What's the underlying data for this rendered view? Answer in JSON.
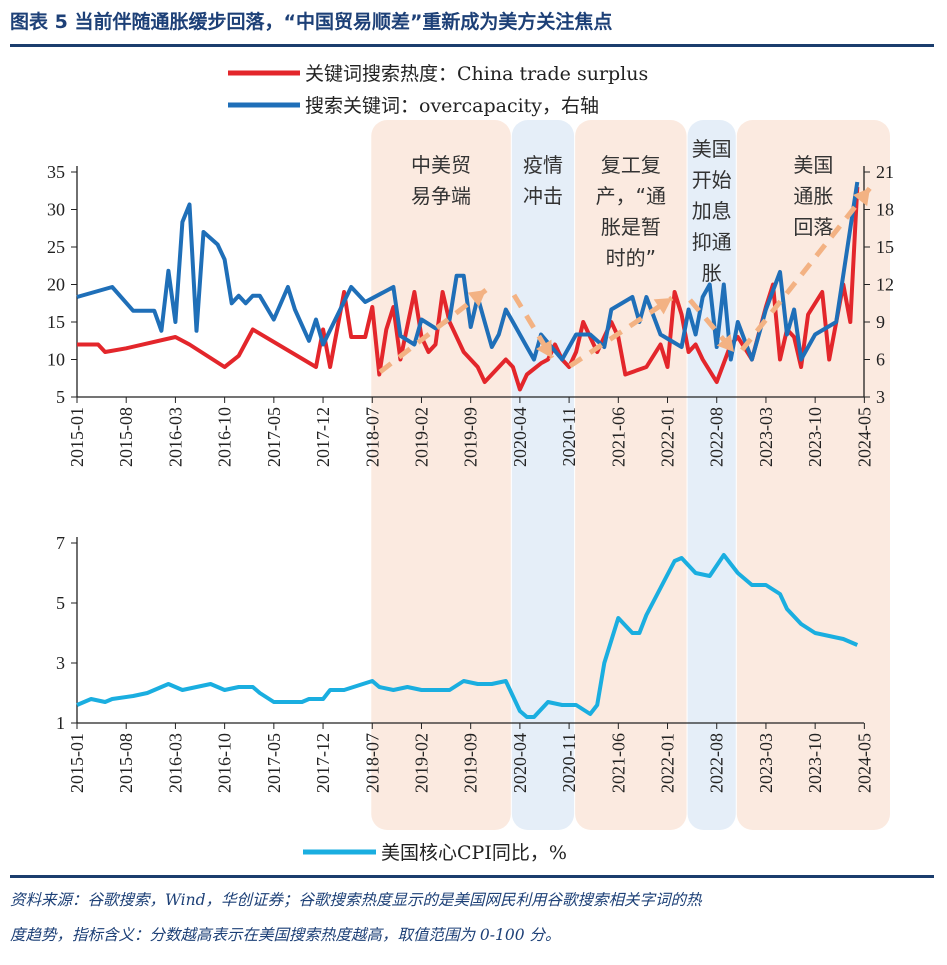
{
  "header": {
    "title": "图表 5   当前伴随通胀缓步回落，“中国贸易顺差”重新成为美方关注焦点"
  },
  "colors": {
    "red": "#e3262b",
    "blue": "#1f6fb8",
    "cyan": "#1aaee0",
    "peach_band": "#fbeae0",
    "blue_band": "#e5eef8",
    "arrow": "#f3b283",
    "rule": "#1b3d6d"
  },
  "legend": {
    "red": "关键词搜索热度：China trade surplus",
    "blue": "搜索关键词：overcapacity，右轴",
    "cyan": "美国核心CPI同比，%"
  },
  "bands": [
    {
      "start": "2018-07",
      "end": "2020-02",
      "type": "peach",
      "lines": [
        "中美贸",
        "易争端"
      ]
    },
    {
      "start": "2020-03",
      "end": "2020-11",
      "type": "blue",
      "lines": [
        "疫情",
        "冲击"
      ]
    },
    {
      "start": "2020-12",
      "end": "2022-03",
      "type": "peach",
      "lines": [
        "复工复",
        "产，“通",
        "胀是暂",
        "时的”"
      ]
    },
    {
      "start": "2022-04",
      "end": "2022-10",
      "type": "blue",
      "lines": [
        "美国",
        "开始",
        "加息",
        "抑通",
        "胀"
      ]
    },
    {
      "start": "2022-11",
      "end": "2024-05",
      "type": "peach",
      "lines": [
        "美国",
        "通胀",
        "回落"
      ]
    }
  ],
  "chart_data": [
    {
      "type": "line",
      "title": "",
      "x_ticks": [
        "2015-01",
        "2015-08",
        "2016-03",
        "2016-10",
        "2017-05",
        "2017-12",
        "2018-07",
        "2019-02",
        "2019-09",
        "2020-04",
        "2020-11",
        "2021-06",
        "2022-01",
        "2022-08",
        "2023-03",
        "2023-10",
        "2024-05"
      ],
      "y_left": {
        "min": 5,
        "max": 35,
        "ticks": [
          "5",
          "10",
          "15",
          "20",
          "25",
          "30",
          "35"
        ]
      },
      "y_right": {
        "min": 3,
        "max": 21,
        "ticks": [
          "3",
          "6",
          "9",
          "12",
          "15",
          "18",
          "21"
        ]
      },
      "series": [
        {
          "name": "关键词搜索热度：China trade surplus",
          "axis": "left",
          "color": "#e3262b",
          "points": [
            [
              "2015-01",
              12
            ],
            [
              "2015-04",
              12
            ],
            [
              "2015-05",
              11
            ],
            [
              "2015-08",
              11.5
            ],
            [
              "2016-03",
              13
            ],
            [
              "2016-05",
              12
            ],
            [
              "2016-10",
              9
            ],
            [
              "2016-12",
              10.5
            ],
            [
              "2017-02",
              14
            ],
            [
              "2017-11",
              9
            ],
            [
              "2017-12",
              14
            ],
            [
              "2018-01",
              9
            ],
            [
              "2018-03",
              19
            ],
            [
              "2018-04",
              13
            ],
            [
              "2018-06",
              13
            ],
            [
              "2018-07",
              17
            ],
            [
              "2018-08",
              8
            ],
            [
              "2018-09",
              14
            ],
            [
              "2018-10",
              17
            ],
            [
              "2018-11",
              10
            ],
            [
              "2019-01",
              19
            ],
            [
              "2019-02",
              13
            ],
            [
              "2019-03",
              11
            ],
            [
              "2019-04",
              12
            ],
            [
              "2019-05",
              19
            ],
            [
              "2019-06",
              15
            ],
            [
              "2019-08",
              11
            ],
            [
              "2019-10",
              9
            ],
            [
              "2019-11",
              7
            ],
            [
              "2020-01",
              9
            ],
            [
              "2020-02",
              10
            ],
            [
              "2020-03",
              9
            ],
            [
              "2020-04",
              6
            ],
            [
              "2020-05",
              8
            ],
            [
              "2020-07",
              9.5
            ],
            [
              "2020-08",
              10
            ],
            [
              "2020-09",
              12
            ],
            [
              "2020-10",
              10
            ],
            [
              "2020-11",
              9
            ],
            [
              "2020-12",
              11
            ],
            [
              "2021-01",
              15
            ],
            [
              "2021-03",
              11
            ],
            [
              "2021-05",
              15
            ],
            [
              "2021-06",
              13
            ],
            [
              "2021-07",
              8
            ],
            [
              "2021-10",
              9
            ],
            [
              "2021-12",
              12
            ],
            [
              "2022-01",
              9
            ],
            [
              "2022-02",
              19
            ],
            [
              "2022-03",
              16
            ],
            [
              "2022-04",
              11
            ],
            [
              "2022-05",
              12
            ],
            [
              "2022-06",
              10
            ],
            [
              "2022-08",
              7
            ],
            [
              "2022-10",
              12
            ],
            [
              "2022-11",
              13
            ],
            [
              "2023-01",
              10
            ],
            [
              "2023-03",
              17
            ],
            [
              "2023-04",
              20
            ],
            [
              "2023-05",
              10
            ],
            [
              "2023-06",
              14
            ],
            [
              "2023-07",
              13
            ],
            [
              "2023-08",
              9
            ],
            [
              "2023-09",
              16
            ],
            [
              "2023-11",
              19
            ],
            [
              "2023-12",
              10
            ],
            [
              "2024-02",
              20
            ],
            [
              "2024-03",
              15
            ],
            [
              "2024-04",
              33
            ]
          ]
        },
        {
          "name": "搜索关键词：overcapacity，右轴",
          "axis": "right",
          "color": "#1f6fb8",
          "points": [
            [
              "2015-01",
              11
            ],
            [
              "2015-06",
              11.8
            ],
            [
              "2015-09",
              9.9
            ],
            [
              "2015-12",
              9.9
            ],
            [
              "2016-01",
              8.3
            ],
            [
              "2016-02",
              13.1
            ],
            [
              "2016-03",
              9
            ],
            [
              "2016-04",
              17
            ],
            [
              "2016-05",
              18.4
            ],
            [
              "2016-06",
              8.3
            ],
            [
              "2016-07",
              16.2
            ],
            [
              "2016-09",
              15.2
            ],
            [
              "2016-10",
              14
            ],
            [
              "2016-11",
              10.5
            ],
            [
              "2016-12",
              11.1
            ],
            [
              "2017-01",
              10.5
            ],
            [
              "2017-02",
              11.1
            ],
            [
              "2017-03",
              11.1
            ],
            [
              "2017-05",
              9.2
            ],
            [
              "2017-07",
              11.8
            ],
            [
              "2017-08",
              10
            ],
            [
              "2017-10",
              7.5
            ],
            [
              "2017-11",
              9.2
            ],
            [
              "2017-12",
              7.2
            ],
            [
              "2018-04",
              11.8
            ],
            [
              "2018-06",
              10.6
            ],
            [
              "2018-10",
              11.8
            ],
            [
              "2018-11",
              7.9
            ],
            [
              "2019-01",
              7.2
            ],
            [
              "2019-02",
              9.2
            ],
            [
              "2019-04",
              8.5
            ],
            [
              "2019-06",
              9.2
            ],
            [
              "2019-07",
              12.7
            ],
            [
              "2019-08",
              12.7
            ],
            [
              "2019-09",
              8.6
            ],
            [
              "2019-10",
              11
            ],
            [
              "2019-11",
              9
            ],
            [
              "2019-12",
              7
            ],
            [
              "2020-01",
              8
            ],
            [
              "2020-02",
              10
            ],
            [
              "2020-03",
              9
            ],
            [
              "2020-05",
              7
            ],
            [
              "2020-06",
              6
            ],
            [
              "2020-07",
              8
            ],
            [
              "2020-10",
              6
            ],
            [
              "2020-12",
              8
            ],
            [
              "2021-02",
              8
            ],
            [
              "2021-04",
              7
            ],
            [
              "2021-05",
              10
            ],
            [
              "2021-08",
              11
            ],
            [
              "2021-09",
              9
            ],
            [
              "2021-10",
              11
            ],
            [
              "2021-12",
              8
            ],
            [
              "2022-03",
              7
            ],
            [
              "2022-04",
              10
            ],
            [
              "2022-05",
              8
            ],
            [
              "2022-06",
              11
            ],
            [
              "2022-07",
              12
            ],
            [
              "2022-08",
              7
            ],
            [
              "2022-09",
              12
            ],
            [
              "2022-10",
              6
            ],
            [
              "2022-11",
              9
            ],
            [
              "2023-01",
              6
            ],
            [
              "2023-03",
              10
            ],
            [
              "2023-05",
              13
            ],
            [
              "2023-06",
              8
            ],
            [
              "2023-07",
              10
            ],
            [
              "2023-08",
              6
            ],
            [
              "2023-10",
              8
            ],
            [
              "2024-01",
              9
            ],
            [
              "2024-04",
              20.2
            ]
          ]
        }
      ]
    },
    {
      "type": "line",
      "title": "",
      "x_ticks": [
        "2015-01",
        "2015-08",
        "2016-03",
        "2016-10",
        "2017-05",
        "2017-12",
        "2018-07",
        "2019-02",
        "2019-09",
        "2020-04",
        "2020-11",
        "2021-06",
        "2022-01",
        "2022-08",
        "2023-03",
        "2023-10",
        "2024-05"
      ],
      "y_left": {
        "min": 1,
        "max": 7,
        "ticks": [
          "1",
          "3",
          "5",
          "7"
        ]
      },
      "series": [
        {
          "name": "美国核心CPI同比，%",
          "axis": "left",
          "color": "#1aaee0",
          "points": [
            [
              "2015-01",
              1.6
            ],
            [
              "2015-03",
              1.8
            ],
            [
              "2015-05",
              1.7
            ],
            [
              "2015-06",
              1.8
            ],
            [
              "2015-09",
              1.9
            ],
            [
              "2015-11",
              2.0
            ],
            [
              "2016-02",
              2.3
            ],
            [
              "2016-04",
              2.1
            ],
            [
              "2016-06",
              2.2
            ],
            [
              "2016-08",
              2.3
            ],
            [
              "2016-10",
              2.1
            ],
            [
              "2016-12",
              2.2
            ],
            [
              "2017-02",
              2.2
            ],
            [
              "2017-03",
              2.0
            ],
            [
              "2017-05",
              1.7
            ],
            [
              "2017-09",
              1.7
            ],
            [
              "2017-10",
              1.8
            ],
            [
              "2017-12",
              1.8
            ],
            [
              "2018-01",
              2.1
            ],
            [
              "2018-03",
              2.1
            ],
            [
              "2018-07",
              2.4
            ],
            [
              "2018-08",
              2.2
            ],
            [
              "2018-10",
              2.1
            ],
            [
              "2018-12",
              2.2
            ],
            [
              "2019-02",
              2.1
            ],
            [
              "2019-04",
              2.1
            ],
            [
              "2019-06",
              2.1
            ],
            [
              "2019-08",
              2.4
            ],
            [
              "2019-10",
              2.3
            ],
            [
              "2019-12",
              2.3
            ],
            [
              "2020-02",
              2.4
            ],
            [
              "2020-04",
              1.4
            ],
            [
              "2020-05",
              1.2
            ],
            [
              "2020-06",
              1.2
            ],
            [
              "2020-08",
              1.7
            ],
            [
              "2020-10",
              1.6
            ],
            [
              "2020-12",
              1.6
            ],
            [
              "2021-02",
              1.3
            ],
            [
              "2021-03",
              1.6
            ],
            [
              "2021-04",
              3.0
            ],
            [
              "2021-06",
              4.5
            ],
            [
              "2021-08",
              4.0
            ],
            [
              "2021-09",
              4.0
            ],
            [
              "2021-10",
              4.6
            ],
            [
              "2021-12",
              5.5
            ],
            [
              "2022-02",
              6.4
            ],
            [
              "2022-03",
              6.5
            ],
            [
              "2022-05",
              6.0
            ],
            [
              "2022-07",
              5.9
            ],
            [
              "2022-09",
              6.6
            ],
            [
              "2022-11",
              6.0
            ],
            [
              "2023-01",
              5.6
            ],
            [
              "2023-03",
              5.6
            ],
            [
              "2023-05",
              5.3
            ],
            [
              "2023-06",
              4.8
            ],
            [
              "2023-08",
              4.3
            ],
            [
              "2023-10",
              4.0
            ],
            [
              "2023-12",
              3.9
            ],
            [
              "2024-02",
              3.8
            ],
            [
              "2024-04",
              3.6
            ]
          ]
        }
      ]
    }
  ],
  "footer": {
    "line1": "资料来源：谷歌搜索，Wind，华创证券；谷歌搜索热度显示的是美国网民利用谷歌搜索相关字词的热",
    "line2": "度趋势，指标含义：分数越高表示在美国搜索热度越高，取值范围为 0-100 分。"
  }
}
